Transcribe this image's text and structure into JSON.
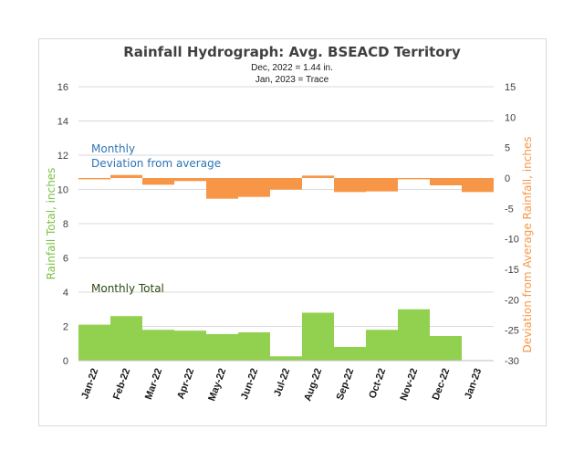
{
  "chart_data": {
    "type": "bar",
    "title": "Rainfall Hydrograph: Avg. BSEACD Territory",
    "subtitle_lines": [
      "Dec, 2022 = 1.44 in.",
      "Jan, 2023 = Trace"
    ],
    "categories": [
      "Jan-22",
      "Feb-22",
      "Mar-22",
      "Apr-22",
      "May-22",
      "Jun-22",
      "Jul-22",
      "Aug-22",
      "Sep-22",
      "Oct-22",
      "Nov-22",
      "Dec-22",
      "Jan-23"
    ],
    "ylabel_left": "Rainfall Total, inches",
    "ylabel_right": "Deviation from Average Rainfall, inches",
    "ylim_left": [
      0,
      16
    ],
    "yticks_left": [
      0,
      2,
      4,
      6,
      8,
      10,
      12,
      14,
      16
    ],
    "ylim_right": [
      -30,
      15
    ],
    "yticks_right": [
      -30,
      -25,
      -20,
      -15,
      -10,
      -5,
      0,
      5,
      10,
      15
    ],
    "grid": true,
    "series": [
      {
        "name": "Monthly Total",
        "axis": "left",
        "color": "#92d050",
        "values": [
          2.1,
          2.6,
          1.8,
          1.75,
          1.55,
          1.65,
          0.25,
          2.8,
          0.8,
          1.8,
          3.0,
          1.44,
          0.0
        ]
      },
      {
        "name": "Monthly Deviation from average",
        "axis": "right",
        "color": "#f79646",
        "values": [
          -0.2,
          0.5,
          -1.1,
          -0.5,
          -3.4,
          -3.1,
          -1.9,
          0.4,
          -2.3,
          -2.2,
          0.0,
          -1.2,
          -2.3
        ]
      }
    ],
    "annotations": {
      "deviation_line1": "Monthly",
      "deviation_line2": "Deviation from average",
      "total": "Monthly Total"
    }
  }
}
